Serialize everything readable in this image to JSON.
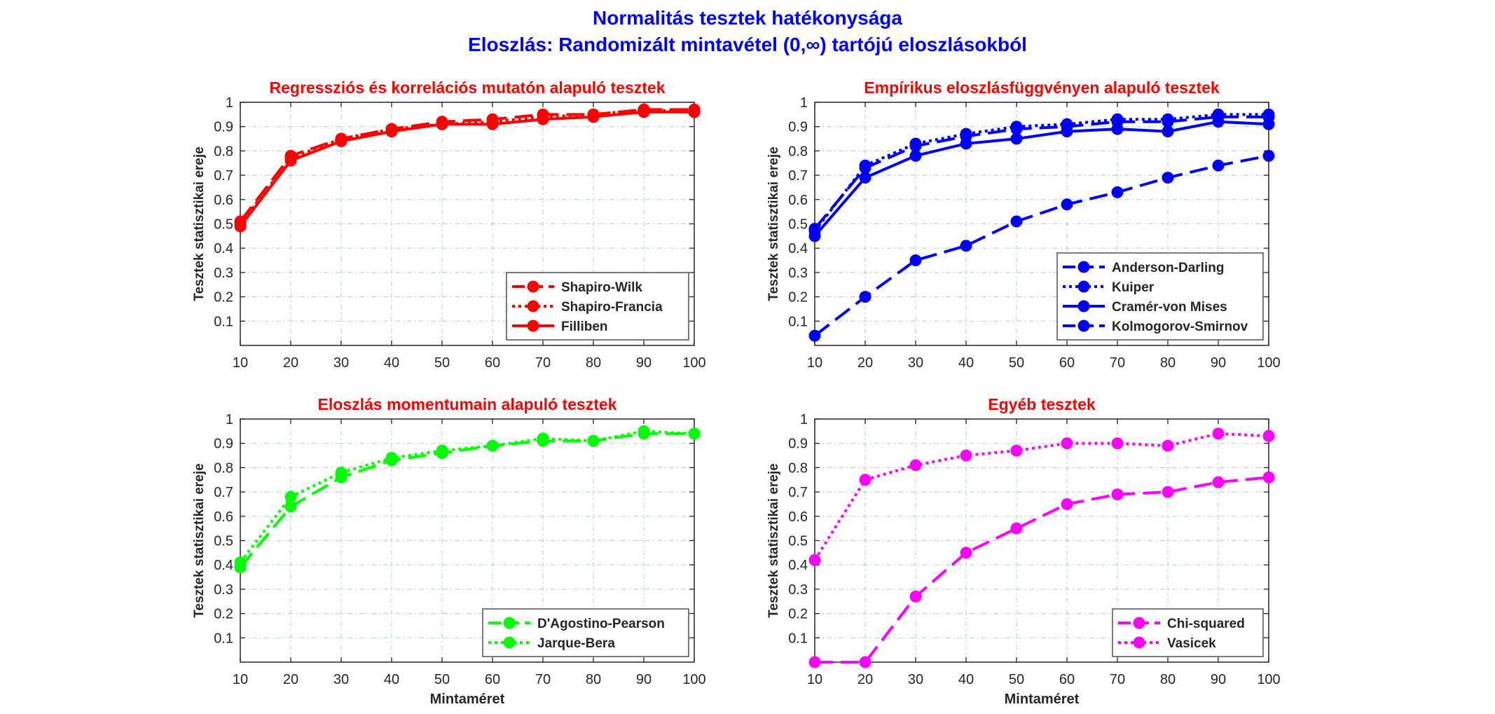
{
  "figure": {
    "title_line1": "Normalitás tesztek hatékonysága",
    "title_line2": "Eloszlás: Randomizált mintavétel (0,∞) tartójú eloszlásokból",
    "title_color": "#0000ff"
  },
  "chart_data": [
    {
      "type": "line",
      "title": "Regressziós és korrelációs mutatón alapuló tesztek",
      "title_color": "#ff0000",
      "xlabel": "",
      "ylabel": "Tesztek statisztikai ereje",
      "x": [
        10,
        20,
        30,
        40,
        50,
        60,
        70,
        80,
        90,
        100
      ],
      "xlim": [
        10,
        100
      ],
      "ylim": [
        0,
        1
      ],
      "yticks": [
        "0.1",
        "0.2",
        "0.3",
        "0.4",
        "0.5",
        "0.6",
        "0.7",
        "0.8",
        "0.9",
        "1"
      ],
      "xticks": [
        "10",
        "20",
        "30",
        "40",
        "50",
        "60",
        "70",
        "80",
        "90",
        "100"
      ],
      "grid": true,
      "legend_position": "bottom-right",
      "series": [
        {
          "name": "Shapiro-Wilk",
          "color": "#ff0000",
          "line_style": "dashed",
          "values": [
            0.51,
            0.78,
            0.85,
            0.89,
            0.92,
            0.93,
            0.95,
            0.95,
            0.97,
            0.97
          ]
        },
        {
          "name": "Shapiro-Francia",
          "color": "#ff0000",
          "line_style": "dotted",
          "values": [
            0.5,
            0.77,
            0.85,
            0.89,
            0.91,
            0.92,
            0.94,
            0.95,
            0.97,
            0.96
          ]
        },
        {
          "name": "Filliben",
          "color": "#ff0000",
          "line_style": "solid",
          "values": [
            0.49,
            0.76,
            0.84,
            0.88,
            0.91,
            0.91,
            0.93,
            0.94,
            0.96,
            0.96
          ]
        }
      ]
    },
    {
      "type": "line",
      "title": "Empírikus eloszlásfüggvényen alapuló tesztek",
      "title_color": "#ff0000",
      "xlabel": "",
      "ylabel": "Tesztek statisztikai ereje",
      "x": [
        10,
        20,
        30,
        40,
        50,
        60,
        70,
        80,
        90,
        100
      ],
      "xlim": [
        10,
        100
      ],
      "ylim": [
        0,
        1
      ],
      "yticks": [
        "0.1",
        "0.2",
        "0.3",
        "0.4",
        "0.5",
        "0.6",
        "0.7",
        "0.8",
        "0.9",
        "1"
      ],
      "xticks": [
        "10",
        "20",
        "30",
        "40",
        "50",
        "60",
        "70",
        "80",
        "90",
        "100"
      ],
      "grid": true,
      "legend_position": "bottom-right",
      "series": [
        {
          "name": "Anderson-Darling",
          "color": "#0000ff",
          "line_style": "dashed",
          "values": [
            0.48,
            0.73,
            0.82,
            0.86,
            0.89,
            0.9,
            0.92,
            0.92,
            0.94,
            0.94
          ]
        },
        {
          "name": "Kuiper",
          "color": "#0000ff",
          "line_style": "dotted",
          "values": [
            0.47,
            0.74,
            0.83,
            0.87,
            0.9,
            0.91,
            0.93,
            0.93,
            0.95,
            0.95
          ]
        },
        {
          "name": "Cramér-von Mises",
          "color": "#0000ff",
          "line_style": "solid",
          "values": [
            0.45,
            0.69,
            0.78,
            0.83,
            0.85,
            0.88,
            0.89,
            0.88,
            0.92,
            0.91
          ]
        },
        {
          "name": "Kolmogorov-Smirnov",
          "color": "#0000ff",
          "line_style": "dashed",
          "values": [
            0.04,
            0.2,
            0.35,
            0.41,
            0.51,
            0.58,
            0.63,
            0.69,
            0.74,
            0.78
          ]
        }
      ]
    },
    {
      "type": "line",
      "title": "Eloszlás momentumain alapuló tesztek",
      "title_color": "#ff0000",
      "xlabel": "Mintaméret",
      "ylabel": "Tesztek statisztikai ereje",
      "x": [
        10,
        20,
        30,
        40,
        50,
        60,
        70,
        80,
        90,
        100
      ],
      "xlim": [
        10,
        100
      ],
      "ylim": [
        0,
        1
      ],
      "yticks": [
        "0.1",
        "0.2",
        "0.3",
        "0.4",
        "0.5",
        "0.6",
        "0.7",
        "0.8",
        "0.9",
        "1"
      ],
      "xticks": [
        "10",
        "20",
        "30",
        "40",
        "50",
        "60",
        "70",
        "80",
        "90",
        "100"
      ],
      "grid": true,
      "legend_position": "bottom-right",
      "series": [
        {
          "name": "D'Agostino-Pearson",
          "color": "#00ff00",
          "line_style": "dashed",
          "values": [
            0.39,
            0.64,
            0.76,
            0.83,
            0.86,
            0.89,
            0.91,
            0.91,
            0.94,
            0.94
          ]
        },
        {
          "name": "Jarque-Bera",
          "color": "#00ff00",
          "line_style": "dotted",
          "values": [
            0.41,
            0.68,
            0.78,
            0.84,
            0.87,
            0.89,
            0.92,
            0.91,
            0.95,
            0.94
          ]
        }
      ]
    },
    {
      "type": "line",
      "title": "Egyéb tesztek",
      "title_color": "#ff0000",
      "xlabel": "Mintaméret",
      "ylabel": "Tesztek statisztikai ereje",
      "x": [
        10,
        20,
        30,
        40,
        50,
        60,
        70,
        80,
        90,
        100
      ],
      "xlim": [
        10,
        100
      ],
      "ylim": [
        0,
        1
      ],
      "yticks": [
        "0.1",
        "0.2",
        "0.3",
        "0.4",
        "0.5",
        "0.6",
        "0.7",
        "0.8",
        "0.9",
        "1"
      ],
      "xticks": [
        "10",
        "20",
        "30",
        "40",
        "50",
        "60",
        "70",
        "80",
        "90",
        "100"
      ],
      "grid": true,
      "legend_position": "bottom-right",
      "series": [
        {
          "name": "Chi-squared",
          "color": "#ff00ff",
          "line_style": "dashed",
          "values": [
            0.0,
            0.0,
            0.27,
            0.45,
            0.55,
            0.65,
            0.69,
            0.7,
            0.74,
            0.76
          ]
        },
        {
          "name": "Vasicek",
          "color": "#ff00ff",
          "line_style": "dotted",
          "values": [
            0.42,
            0.75,
            0.81,
            0.85,
            0.87,
            0.9,
            0.9,
            0.89,
            0.94,
            0.93
          ]
        }
      ]
    }
  ]
}
